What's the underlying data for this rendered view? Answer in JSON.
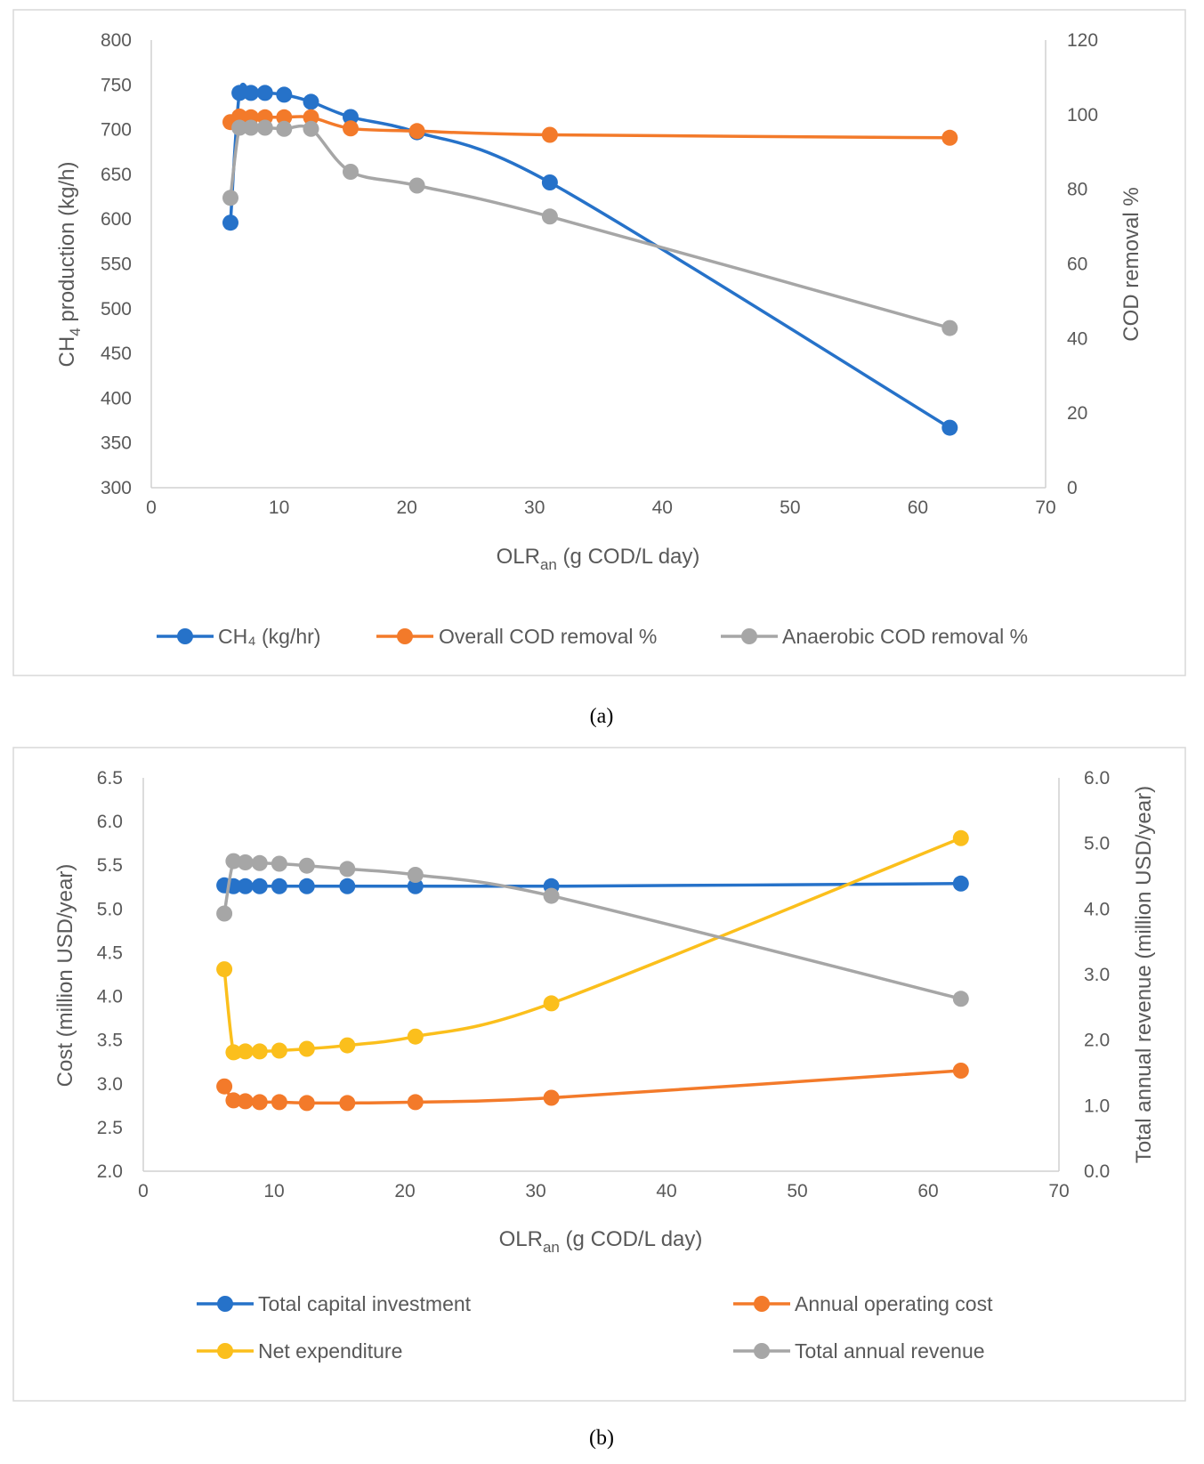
{
  "colors": {
    "blue": "#2672c9",
    "orange": "#f37a2a",
    "gray": "#a6a6a6",
    "yellow": "#fbbf1c"
  },
  "captions": {
    "a": "a",
    "b": "b"
  },
  "chart_data": [
    {
      "id": "a",
      "type": "line",
      "title": "",
      "xlabel": {
        "main": "OLR",
        "sub": "an",
        "rest": " (g COD/L day)"
      },
      "ylabel_left": {
        "main": "CH",
        "sub": "4",
        "rest": " production (kg/h)"
      },
      "ylabel_right": "COD removal %",
      "xlim": [
        0,
        70
      ],
      "xticks": [
        "0",
        "10",
        "20",
        "30",
        "40",
        "50",
        "60",
        "70"
      ],
      "ylim_left": [
        300,
        800
      ],
      "yticks_left": [
        "300",
        "350",
        "400",
        "450",
        "500",
        "550",
        "600",
        "650",
        "700",
        "750",
        "800"
      ],
      "ylim_right": [
        0,
        120
      ],
      "yticks_right": [
        "0",
        "20",
        "40",
        "60",
        "80",
        "100",
        "120"
      ],
      "legend_position": "bottom",
      "series": [
        {
          "name": "CH₄ (kg/hr)",
          "color": "#2672c9",
          "axis": "left",
          "x": [
            6.2,
            6.9,
            7.8,
            8.9,
            10.4,
            12.5,
            15.6,
            20.8,
            31.2,
            62.5
          ],
          "values": [
            596,
            741,
            741,
            741,
            739,
            731,
            714,
            697,
            641,
            367
          ]
        },
        {
          "name": "Overall COD removal %",
          "color": "#f37a2a",
          "axis": "right",
          "x": [
            6.2,
            6.9,
            7.8,
            8.9,
            10.4,
            12.5,
            15.6,
            20.8,
            31.2,
            62.5
          ],
          "values": [
            98,
            99.5,
            99.3,
            99.3,
            99.3,
            99.3,
            96.3,
            95.6,
            94.6,
            93.8
          ]
        },
        {
          "name": "Anaerobic COD removal %",
          "color": "#a6a6a6",
          "axis": "right",
          "x": [
            6.2,
            6.9,
            7.8,
            8.9,
            10.4,
            12.5,
            15.6,
            20.8,
            31.2,
            62.5
          ],
          "values": [
            77.7,
            96.5,
            96.5,
            96.5,
            96.2,
            96.2,
            84.7,
            81,
            72.7,
            42.8
          ]
        }
      ]
    },
    {
      "id": "b",
      "type": "line",
      "title": "",
      "xlabel": {
        "main": "OLR",
        "sub": "an",
        "rest": " (g COD/L day)"
      },
      "ylabel_left": {
        "main": "Cost (million USD/year)",
        "sub": "",
        "rest": ""
      },
      "ylabel_right": "Total annual revenue (million USD/year)",
      "xlim": [
        0,
        70
      ],
      "xticks": [
        "0",
        "10",
        "20",
        "30",
        "40",
        "50",
        "60",
        "70"
      ],
      "ylim_left": [
        2.0,
        6.5
      ],
      "yticks_left": [
        "2.0",
        "2.5",
        "3.0",
        "3.5",
        "4.0",
        "4.5",
        "5.0",
        "5.5",
        "6.0",
        "6.5"
      ],
      "ylim_right": [
        0.0,
        6.0
      ],
      "yticks_right": [
        "0.0",
        "1.0",
        "2.0",
        "3.0",
        "4.0",
        "5.0",
        "6.0"
      ],
      "legend_position": "bottom",
      "series": [
        {
          "name": "Total capital investment",
          "color": "#2672c9",
          "axis": "left",
          "x": [
            6.2,
            6.9,
            7.8,
            8.9,
            10.4,
            12.5,
            15.6,
            20.8,
            31.2,
            62.5
          ],
          "values": [
            5.27,
            5.26,
            5.26,
            5.26,
            5.26,
            5.26,
            5.26,
            5.26,
            5.26,
            5.29
          ]
        },
        {
          "name": "Annual operating cost",
          "color": "#f37a2a",
          "axis": "left",
          "x": [
            6.2,
            6.9,
            7.8,
            8.9,
            10.4,
            12.5,
            15.6,
            20.8,
            31.2,
            62.5
          ],
          "values": [
            2.97,
            2.81,
            2.8,
            2.79,
            2.79,
            2.78,
            2.78,
            2.79,
            2.84,
            3.15
          ]
        },
        {
          "name": "Net expenditure",
          "color": "#fbbf1c",
          "axis": "left",
          "x": [
            6.2,
            6.9,
            7.8,
            8.9,
            10.4,
            12.5,
            15.6,
            20.8,
            31.2,
            62.5
          ],
          "values": [
            4.31,
            3.36,
            3.37,
            3.37,
            3.38,
            3.4,
            3.44,
            3.54,
            3.92,
            5.81
          ]
        },
        {
          "name": "Total annual revenue",
          "color": "#a6a6a6",
          "axis": "right",
          "x": [
            6.2,
            6.9,
            7.8,
            8.9,
            10.4,
            12.5,
            15.6,
            20.8,
            31.2,
            62.5
          ],
          "values": [
            3.93,
            4.73,
            4.71,
            4.7,
            4.69,
            4.66,
            4.61,
            4.52,
            4.2,
            2.63
          ]
        }
      ]
    }
  ]
}
